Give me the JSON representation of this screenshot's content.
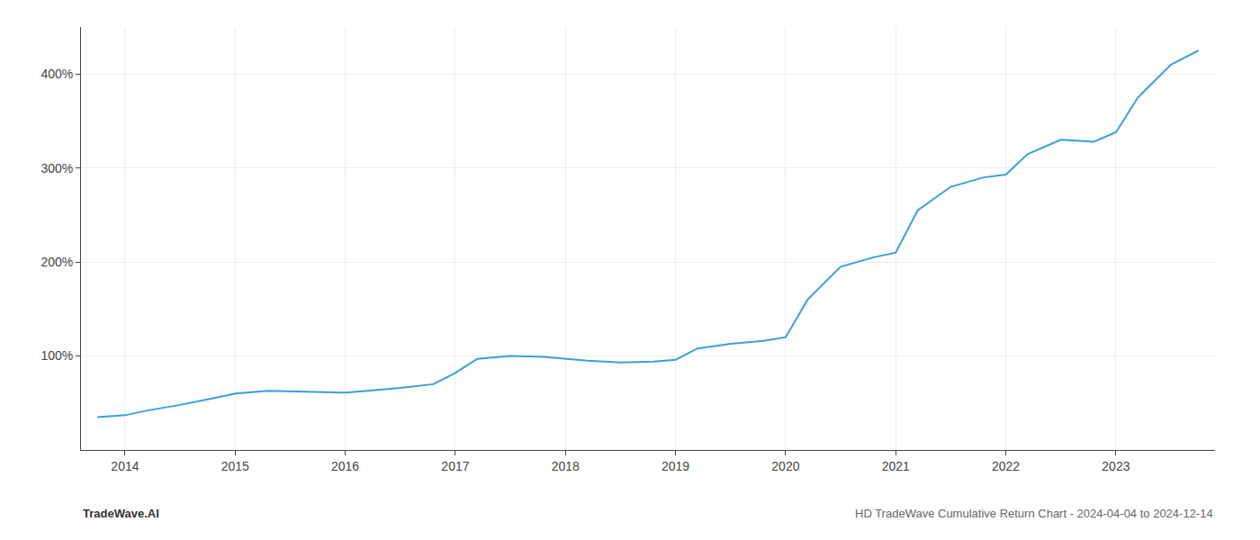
{
  "chart_data": {
    "type": "line",
    "x": [
      2013.75,
      2014.0,
      2014.2,
      2014.5,
      2014.8,
      2015.0,
      2015.3,
      2015.6,
      2015.9,
      2016.0,
      2016.2,
      2016.5,
      2016.8,
      2017.0,
      2017.2,
      2017.5,
      2017.8,
      2018.0,
      2018.2,
      2018.5,
      2018.8,
      2019.0,
      2019.2,
      2019.5,
      2019.8,
      2020.0,
      2020.2,
      2020.5,
      2020.8,
      2021.0,
      2021.2,
      2021.5,
      2021.8,
      2022.0,
      2022.2,
      2022.5,
      2022.8,
      2023.0,
      2023.2,
      2023.5,
      2023.75
    ],
    "values": [
      35,
      37,
      42,
      48,
      55,
      60,
      63,
      62,
      61,
      61,
      63,
      66,
      70,
      82,
      97,
      100,
      99,
      97,
      95,
      93,
      94,
      96,
      108,
      113,
      116,
      120,
      160,
      195,
      205,
      210,
      255,
      280,
      290,
      293,
      315,
      330,
      328,
      338,
      375,
      410,
      425
    ],
    "color": "#3a9fd8",
    "xlim": [
      2013.6,
      2023.9
    ],
    "ylim": [
      0,
      450
    ],
    "xticks": [
      2014,
      2015,
      2016,
      2017,
      2018,
      2019,
      2020,
      2021,
      2022,
      2023
    ],
    "yticks": [
      {
        "value": 100,
        "label": "100%"
      },
      {
        "value": 200,
        "label": "200%"
      },
      {
        "value": 300,
        "label": "300%"
      },
      {
        "value": 400,
        "label": "400%"
      }
    ],
    "grid": true,
    "annotations": [
      "TradeWave.AI",
      "HD TradeWave Cumulative Return Chart - 2024-04-04 to 2024-12-14"
    ]
  }
}
